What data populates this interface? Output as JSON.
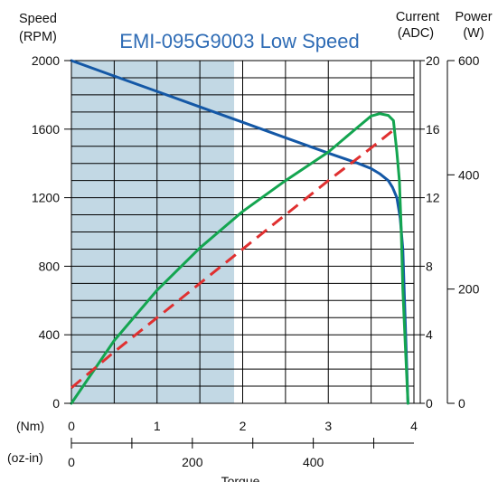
{
  "chart_data": {
    "type": "line",
    "title": "EMI-095G9003 Low Speed",
    "headers": {
      "speed": [
        "Speed",
        "(RPM)"
      ],
      "current": [
        "Current",
        "(ADC)"
      ],
      "power": [
        "Power",
        "(W)"
      ]
    },
    "axes": {
      "speed": {
        "ticks": [
          "2000",
          "1600",
          "1200",
          "800",
          "400",
          "0"
        ],
        "ylim": [
          0,
          2000
        ]
      },
      "current": {
        "ticks": [
          "20",
          "16",
          "12",
          "8",
          "4",
          "0"
        ],
        "ylim": [
          0,
          20
        ]
      },
      "power": {
        "ticks": [
          "600",
          "400",
          "200",
          "0"
        ],
        "ylim": [
          0,
          600
        ]
      },
      "torque_nm": {
        "label": "(Nm)",
        "ticks": [
          "0",
          "1",
          "2",
          "3",
          "4"
        ],
        "xlim": [
          0,
          4
        ]
      },
      "torque_ozin": {
        "label": "(oz-in)",
        "ticks": [
          "0",
          "200",
          "400"
        ]
      },
      "xlabel": "Torque"
    },
    "grid": true,
    "shaded_region": {
      "x_from": 0,
      "x_to": 1.9,
      "color": "#c2d8e4"
    },
    "series": [
      {
        "name": "Speed",
        "color": "#1458a6",
        "axis": "speed",
        "style": "solid",
        "points": [
          [
            0,
            2000
          ],
          [
            0.5,
            1910
          ],
          [
            1,
            1820
          ],
          [
            1.5,
            1730
          ],
          [
            2,
            1640
          ],
          [
            2.5,
            1550
          ],
          [
            3,
            1460
          ],
          [
            3.35,
            1400
          ],
          [
            3.5,
            1370
          ],
          [
            3.6,
            1340
          ],
          [
            3.7,
            1300
          ],
          [
            3.75,
            1260
          ],
          [
            3.8,
            1200
          ],
          [
            3.84,
            1080
          ],
          [
            3.87,
            900
          ],
          [
            3.89,
            600
          ],
          [
            3.91,
            300
          ],
          [
            3.93,
            0
          ]
        ]
      },
      {
        "name": "Power",
        "color": "#14a550",
        "axis": "power",
        "style": "solid",
        "points": [
          [
            0,
            0
          ],
          [
            0.5,
            110
          ],
          [
            1,
            198
          ],
          [
            1.5,
            272
          ],
          [
            2,
            336
          ],
          [
            2.5,
            390
          ],
          [
            3,
            440
          ],
          [
            3.3,
            478
          ],
          [
            3.5,
            503
          ],
          [
            3.6,
            507
          ],
          [
            3.7,
            504
          ],
          [
            3.76,
            495
          ],
          [
            3.8,
            440
          ],
          [
            3.83,
            390
          ],
          [
            3.85,
            310
          ],
          [
            3.87,
            200
          ],
          [
            3.9,
            100
          ],
          [
            3.93,
            0
          ]
        ]
      },
      {
        "name": "Current",
        "color": "#e03030",
        "axis": "current",
        "style": "dashed",
        "points": [
          [
            0,
            0.9
          ],
          [
            0.5,
            3.0
          ],
          [
            1,
            5.0
          ],
          [
            1.5,
            7.0
          ],
          [
            2,
            9.0
          ],
          [
            2.5,
            11.0
          ],
          [
            3,
            13.0
          ],
          [
            3.5,
            14.9
          ],
          [
            3.8,
            16.1
          ]
        ]
      }
    ]
  }
}
